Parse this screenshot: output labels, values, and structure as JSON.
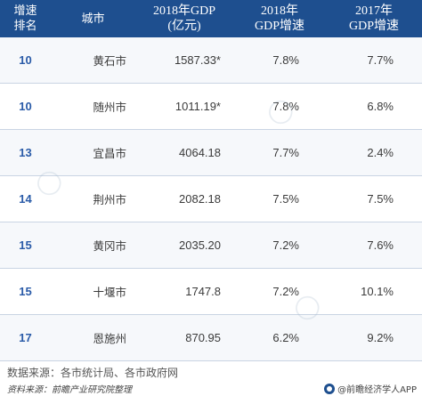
{
  "header": {
    "rank_line1": "增速",
    "rank_line2": "排名",
    "city": "城市",
    "gdp_line1": "2018年GDP",
    "gdp_line2": "(亿元)",
    "g18_line1": "2018年",
    "g18_line2": "GDP增速",
    "g17_line1": "2017年",
    "g17_line2": "GDP增速"
  },
  "rows": [
    {
      "rank": "10",
      "city": "黄石市",
      "gdp": "1587.33*",
      "g18": "7.8%",
      "g17": "7.7%"
    },
    {
      "rank": "10",
      "city": "随州市",
      "gdp": "1011.19*",
      "g18": "7.8%",
      "g17": "6.8%"
    },
    {
      "rank": "13",
      "city": "宜昌市",
      "gdp": "4064.18",
      "g18": "7.7%",
      "g17": "2.4%"
    },
    {
      "rank": "14",
      "city": "荆州市",
      "gdp": "2082.18",
      "g18": "7.5%",
      "g17": "7.5%"
    },
    {
      "rank": "15",
      "city": "黄冈市",
      "gdp": "2035.20",
      "g18": "7.2%",
      "g17": "7.6%"
    },
    {
      "rank": "15",
      "city": "十堰市",
      "gdp": "1747.8",
      "g18": "7.2%",
      "g17": "10.1%"
    },
    {
      "rank": "17",
      "city": "恩施州",
      "gdp": "870.95",
      "g18": "6.2%",
      "g17": "9.2%"
    }
  ],
  "footer": {
    "source": "数据来源：各市统计局、各市政府网",
    "material": "资料来源：前瞻产业研究院整理",
    "brand": "@前瞻经济学人APP"
  }
}
